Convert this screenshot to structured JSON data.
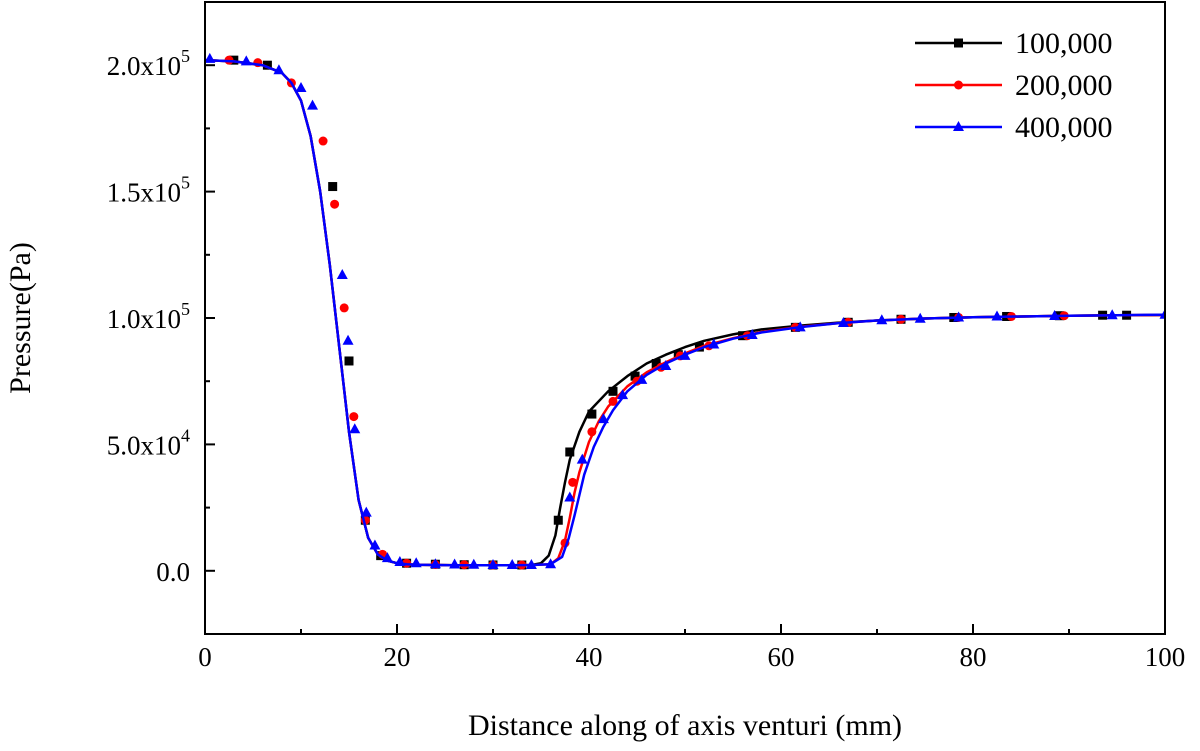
{
  "chart_data": {
    "type": "line",
    "xlabel": "Distance along of axis venturi (mm)",
    "ylabel": "Pressure(Pa)",
    "xlim": [
      0,
      100
    ],
    "ylim": [
      -25000,
      225000
    ],
    "grid": false,
    "legend_position": "top-right",
    "x_ticks": [
      {
        "value": 0,
        "label": "0"
      },
      {
        "value": 20,
        "label": "20"
      },
      {
        "value": 40,
        "label": "40"
      },
      {
        "value": 60,
        "label": "60"
      },
      {
        "value": 80,
        "label": "80"
      },
      {
        "value": 100,
        "label": "100"
      }
    ],
    "y_ticks": [
      {
        "value": 0,
        "mantissa": "0.0",
        "exp": ""
      },
      {
        "value": 50000,
        "mantissa": "5.0x10",
        "exp": "4"
      },
      {
        "value": 100000,
        "mantissa": "1.0x10",
        "exp": "5"
      },
      {
        "value": 150000,
        "mantissa": "1.5x10",
        "exp": "5"
      },
      {
        "value": 200000,
        "mantissa": "2.0x10",
        "exp": "5"
      }
    ],
    "series": [
      {
        "name": "100,000",
        "color": "#000000",
        "marker": "square",
        "x": [
          0,
          3,
          6,
          8,
          9,
          10,
          11,
          12,
          13,
          14,
          15,
          16,
          17,
          18,
          19,
          20,
          21,
          22,
          24,
          26,
          28,
          30,
          32,
          34,
          35,
          35.8,
          36.5,
          37.0,
          37.5,
          38.0,
          39.0,
          40.0,
          42.0,
          44.0,
          46.0,
          48.0,
          50.0,
          52.0,
          55.0,
          58.0,
          62.0,
          66.0,
          70.0,
          75.0,
          80.0,
          85.0,
          90.0,
          95.0,
          100.0
        ],
        "y": [
          202000,
          201500,
          200000,
          197000,
          193000,
          186000,
          172000,
          150000,
          121000,
          88000,
          55000,
          28000,
          13000,
          6500,
          4000,
          3000,
          2600,
          2400,
          2300,
          2200,
          2200,
          2200,
          2200,
          2300,
          3000,
          6000,
          14000,
          25000,
          35000,
          44000,
          55000,
          63000,
          71000,
          77000,
          82000,
          85500,
          88500,
          91000,
          93500,
          95500,
          97000,
          98200,
          99000,
          99800,
          100300,
          100600,
          100900,
          101100,
          101200
        ],
        "markers": [
          [
            3.0,
            202000
          ],
          [
            6.5,
            200000
          ],
          [
            13.3,
            152000
          ],
          [
            15.0,
            83000
          ],
          [
            16.7,
            20000
          ],
          [
            18.3,
            6000
          ],
          [
            21.0,
            3000
          ],
          [
            24.0,
            2600
          ],
          [
            27.0,
            2400
          ],
          [
            30.0,
            2300
          ],
          [
            33.0,
            2300
          ],
          [
            36.8,
            20000
          ],
          [
            38.0,
            47000
          ],
          [
            40.3,
            62000
          ],
          [
            42.5,
            71000
          ],
          [
            44.8,
            77000
          ],
          [
            47.0,
            82000
          ],
          [
            49.3,
            85500
          ],
          [
            51.5,
            88500
          ],
          [
            56.0,
            93000
          ],
          [
            61.5,
            96300
          ],
          [
            67.0,
            98300
          ],
          [
            72.5,
            99500
          ],
          [
            78.0,
            100200
          ],
          [
            83.5,
            100600
          ],
          [
            89.0,
            100900
          ],
          [
            93.5,
            101100
          ],
          [
            96.0,
            101100
          ]
        ]
      },
      {
        "name": "200,000",
        "color": "#ff0000",
        "marker": "circle",
        "x": [
          0,
          3,
          6,
          8,
          9,
          10,
          11,
          12,
          13,
          14,
          15,
          16,
          17,
          18,
          19,
          20,
          21,
          22,
          24,
          26,
          28,
          30,
          32,
          34,
          36,
          36.8,
          37.5,
          38.0,
          38.5,
          39.0,
          40.0,
          41.0,
          42.0,
          44.0,
          46.0,
          48.0,
          50.0,
          52.0,
          55.0,
          58.0,
          62.0,
          66.0,
          70.0,
          75.0,
          80.0,
          85.0,
          90.0,
          95.0,
          100.0
        ],
        "y": [
          202000,
          201500,
          200000,
          197000,
          193000,
          186000,
          172000,
          150000,
          121000,
          88000,
          55000,
          28000,
          13000,
          6500,
          4000,
          3000,
          2600,
          2400,
          2300,
          2200,
          2200,
          2200,
          2200,
          2300,
          2600,
          5000,
          12000,
          21000,
          31000,
          39000,
          51000,
          59000,
          65000,
          73000,
          78500,
          82500,
          86000,
          89000,
          92000,
          94500,
          96500,
          98000,
          99000,
          99800,
          100300,
          100600,
          100900,
          101100,
          101200
        ],
        "markers": [
          [
            2.5,
            202000
          ],
          [
            5.5,
            201000
          ],
          [
            9.0,
            193000
          ],
          [
            12.3,
            170000
          ],
          [
            13.5,
            145000
          ],
          [
            14.5,
            104000
          ],
          [
            15.5,
            61000
          ],
          [
            16.7,
            20000
          ],
          [
            18.5,
            6500
          ],
          [
            21.0,
            3000
          ],
          [
            24.0,
            2500
          ],
          [
            27.0,
            2400
          ],
          [
            30.0,
            2300
          ],
          [
            33.0,
            2300
          ],
          [
            37.5,
            11000
          ],
          [
            38.3,
            35000
          ],
          [
            40.3,
            55000
          ],
          [
            42.5,
            67000
          ],
          [
            45.0,
            75000
          ],
          [
            47.5,
            80500
          ],
          [
            49.5,
            85000
          ],
          [
            52.5,
            89000
          ],
          [
            56.5,
            93000
          ],
          [
            61.5,
            96300
          ],
          [
            67.0,
            98300
          ],
          [
            72.5,
            99500
          ],
          [
            78.5,
            100200
          ],
          [
            84.0,
            100600
          ],
          [
            89.5,
            100900
          ]
        ]
      },
      {
        "name": "400,000",
        "color": "#0000ff",
        "marker": "triangle",
        "x": [
          0,
          3,
          6,
          8,
          9,
          10,
          11,
          12,
          13,
          14,
          15,
          16,
          17,
          18,
          19,
          20,
          21,
          22,
          24,
          26,
          28,
          30,
          32,
          34,
          36,
          37.2,
          37.9,
          38.5,
          39.0,
          39.5,
          40.5,
          41.5,
          42.5,
          44.0,
          46.0,
          48.0,
          50.0,
          52.0,
          55.0,
          58.0,
          62.0,
          66.0,
          70.0,
          75.0,
          80.0,
          85.0,
          90.0,
          95.0,
          100.0
        ],
        "y": [
          202000,
          201500,
          200000,
          197000,
          193000,
          186000,
          172000,
          150000,
          121000,
          88000,
          55000,
          28000,
          13000,
          6500,
          4000,
          3000,
          2600,
          2400,
          2300,
          2200,
          2200,
          2200,
          2200,
          2300,
          2600,
          5500,
          13000,
          22000,
          30000,
          38000,
          49000,
          57000,
          63500,
          71000,
          77500,
          82000,
          85500,
          88500,
          91800,
          94300,
          96400,
          98000,
          99000,
          99800,
          100300,
          100600,
          100900,
          101100,
          101300
        ],
        "markers": [
          [
            0.5,
            202500
          ],
          [
            4.3,
            201500
          ],
          [
            7.7,
            198000
          ],
          [
            10.0,
            191000
          ],
          [
            11.2,
            184000
          ],
          [
            14.3,
            117000
          ],
          [
            14.9,
            91000
          ],
          [
            15.6,
            56000
          ],
          [
            16.8,
            23000
          ],
          [
            17.7,
            10000
          ],
          [
            19.0,
            5000
          ],
          [
            20.3,
            3500
          ],
          [
            22.0,
            3000
          ],
          [
            24.0,
            2600
          ],
          [
            26.0,
            2500
          ],
          [
            28.0,
            2400
          ],
          [
            30.0,
            2300
          ],
          [
            32.0,
            2300
          ],
          [
            34.0,
            2300
          ],
          [
            36.0,
            2600
          ],
          [
            38.0,
            29000
          ],
          [
            39.3,
            44000
          ],
          [
            41.5,
            60000
          ],
          [
            43.5,
            69500
          ],
          [
            45.5,
            75500
          ],
          [
            48.0,
            81000
          ],
          [
            50.0,
            85000
          ],
          [
            53.0,
            89500
          ],
          [
            57.0,
            93300
          ],
          [
            62.0,
            96300
          ],
          [
            66.5,
            98000
          ],
          [
            70.5,
            99100
          ],
          [
            74.5,
            99700
          ],
          [
            78.5,
            100200
          ],
          [
            82.5,
            100600
          ],
          [
            88.5,
            100800
          ],
          [
            94.5,
            101100
          ],
          [
            100.0,
            101300
          ]
        ]
      }
    ]
  }
}
